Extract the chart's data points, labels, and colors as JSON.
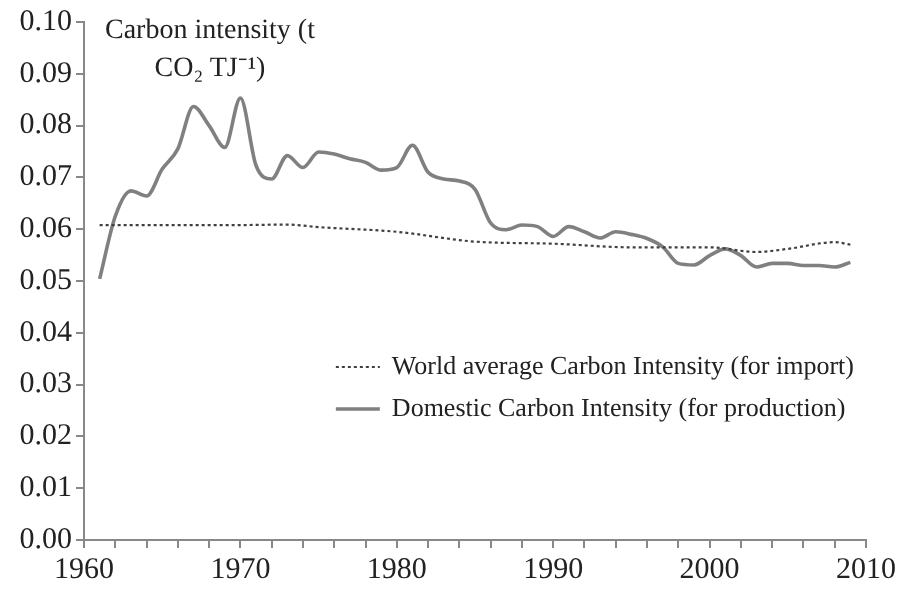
{
  "chart_data": {
    "type": "line",
    "ylabel": "Carbon intensity (t CO₂ TJ⁻¹)",
    "xlim": [
      1960,
      2010
    ],
    "xticks": [
      1960,
      {
        "value": 1962,
        "label": null
      },
      {
        "value": 1964,
        "label": null
      },
      {
        "value": 1966,
        "label": null
      },
      {
        "value": 1968,
        "label": null
      },
      1970,
      {
        "value": 1972,
        "label": null
      },
      {
        "value": 1974,
        "label": null
      },
      {
        "value": 1976,
        "label": null
      },
      {
        "value": 1978,
        "label": null
      },
      1980,
      {
        "value": 1982,
        "label": null
      },
      {
        "value": 1984,
        "label": null
      },
      {
        "value": 1986,
        "label": null
      },
      {
        "value": 1988,
        "label": null
      },
      1990,
      {
        "value": 1992,
        "label": null
      },
      {
        "value": 1994,
        "label": null
      },
      {
        "value": 1996,
        "label": null
      },
      {
        "value": 1998,
        "label": null
      },
      2000,
      {
        "value": 2002,
        "label": null
      },
      {
        "value": 2004,
        "label": null
      },
      {
        "value": 2006,
        "label": null
      },
      {
        "value": 2008,
        "label": null
      },
      2010
    ],
    "ylim": [
      0,
      0.1
    ],
    "yticks": [
      {
        "value": 0,
        "label": "0.00"
      },
      {
        "value": 0.01,
        "label": "0.01"
      },
      {
        "value": 0.02,
        "label": "0.02"
      },
      {
        "value": 0.03,
        "label": "0.03"
      },
      {
        "value": 0.04,
        "label": "0.04"
      },
      {
        "value": 0.05,
        "label": "0.05"
      },
      {
        "value": 0.06,
        "label": "0.06"
      },
      {
        "value": 0.07,
        "label": "0.07"
      },
      {
        "value": 0.08,
        "label": "0.08"
      },
      {
        "value": 0.09,
        "label": "0.09"
      },
      {
        "value": 0.1,
        "label": "0.10"
      }
    ],
    "grid": false,
    "legend": "bottom right",
    "marker": "none",
    "series": [
      {
        "name": "World average Carbon Intensity (for import)",
        "color": "#404040",
        "line_style": "dotted",
        "x": [
          1961,
          1965,
          1970,
          1973,
          1975,
          1980,
          1985,
          1990,
          1995,
          2000,
          2003,
          2005,
          2008,
          2009
        ],
        "values": [
          0.0608,
          0.0608,
          0.0608,
          0.0609,
          0.0604,
          0.0595,
          0.0576,
          0.0572,
          0.0565,
          0.0565,
          0.0556,
          0.0562,
          0.0575,
          0.057
        ]
      },
      {
        "name": "Domestic Carbon Intensity (for production)",
        "color": "#808080",
        "line_style": "solid",
        "x": [
          1961,
          1962,
          1963,
          1964,
          1965,
          1966,
          1967,
          1968,
          1969,
          1970,
          1971,
          1972,
          1973,
          1974,
          1975,
          1976,
          1977,
          1978,
          1979,
          1980,
          1981,
          1982,
          1983,
          1984,
          1985,
          1986,
          1987,
          1988,
          1989,
          1990,
          1991,
          1992,
          1993,
          1994,
          1995,
          1996,
          1997,
          1998,
          1999,
          2000,
          2001,
          2002,
          2003,
          2004,
          2005,
          2006,
          2007,
          2008,
          2009
        ],
        "values": [
          0.0504,
          0.0625,
          0.0674,
          0.0664,
          0.0716,
          0.0755,
          0.0837,
          0.08,
          0.0758,
          0.0853,
          0.0723,
          0.0697,
          0.0742,
          0.0719,
          0.0749,
          0.0745,
          0.0736,
          0.0729,
          0.0714,
          0.0719,
          0.0762,
          0.071,
          0.0697,
          0.0693,
          0.0677,
          0.0612,
          0.0599,
          0.0608,
          0.0605,
          0.0586,
          0.0605,
          0.0595,
          0.0583,
          0.0595,
          0.059,
          0.0582,
          0.0566,
          0.0534,
          0.0531,
          0.0549,
          0.0562,
          0.0549,
          0.0527,
          0.0534,
          0.0534,
          0.053,
          0.053,
          0.0527,
          0.0536
        ]
      }
    ]
  }
}
